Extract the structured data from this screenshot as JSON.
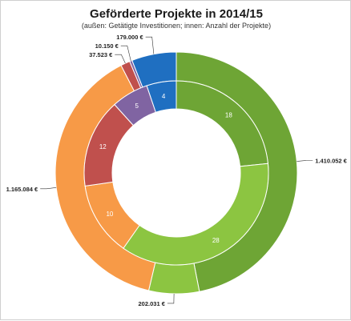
{
  "chart_data": {
    "type": "donut",
    "title": "Geförderte Projekte in 2014/15",
    "subtitle": "(außen:  Getätigte Investitionen;  innen: Anzahl der Projekte)",
    "outer_ring": {
      "segments": [
        {
          "value": 1410052,
          "label": "1.410.052 €",
          "color": "#6ea535"
        },
        {
          "value": 202031,
          "label": "202.031 €",
          "color": "#8cc541"
        },
        {
          "value": 1165084,
          "label": "1.165.084 €",
          "color": "#f79a47"
        },
        {
          "value": 37523,
          "label": "37.523 €",
          "color": "#c0504d"
        },
        {
          "value": 10150,
          "label": "10.150 €",
          "color": "#8064a2"
        },
        {
          "value": 179000,
          "label": "179.000 €",
          "color": "#1f6fc1"
        }
      ]
    },
    "inner_ring": {
      "segments": [
        {
          "value": 18,
          "label": "18",
          "color": "#6ea535"
        },
        {
          "value": 28,
          "label": "28",
          "color": "#8cc541"
        },
        {
          "value": 10,
          "label": "10",
          "color": "#f79a47"
        },
        {
          "value": 12,
          "label": "12",
          "color": "#c0504d"
        },
        {
          "value": 5,
          "label": "5",
          "color": "#8064a2"
        },
        {
          "value": 4,
          "label": "4",
          "color": "#1f6fc1"
        }
      ]
    }
  }
}
